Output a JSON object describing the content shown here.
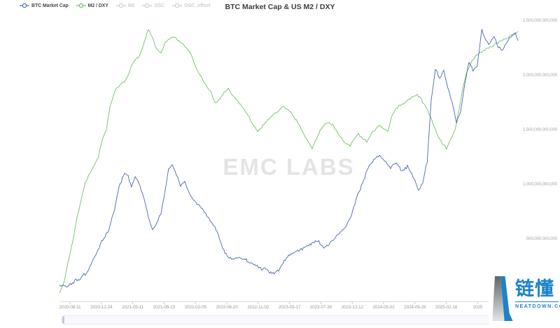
{
  "title": "BTC Market Cap & US M2 / DXY",
  "watermark": "EMC LABS",
  "legend": {
    "items": [
      {
        "label": "BTC Market Cap",
        "color": "#4a67b3",
        "active": true
      },
      {
        "label": "M2 / DXY",
        "color": "#72bf63",
        "active": true
      },
      {
        "label": "M2",
        "color": "#cccccc",
        "active": false
      },
      {
        "label": "OSC",
        "color": "#cccccc",
        "active": false
      },
      {
        "label": "OSC_offset",
        "color": "#cccccc",
        "active": false
      }
    ]
  },
  "y_axis_labels": [
    "2,500,000,000,000",
    "2,000,000,000,000",
    "1,500,000,000,000",
    "1,000,000,000,000",
    "500,000,000,000"
  ],
  "x_axis_labels": [
    "2020-08-11",
    "2020-12-24",
    "2021-05-11",
    "2021-09-23",
    "2022-02-05",
    "2022-06-20",
    "2022-11-02",
    "2023-03-17",
    "2023-07-30",
    "2023-12-12",
    "2024-05-02",
    "2024-09-28",
    "2025-02-16",
    "2025"
  ],
  "branding": {
    "name": "链懂",
    "domain": "NEATDOWN.COM",
    "color": "#1d82c7"
  },
  "chart_data": {
    "type": "line",
    "title": "BTC Market Cap & US M2 / DXY",
    "xlabel": "date",
    "ylabel": "USD",
    "ylim": [
      0,
      2500000000000
    ],
    "grid": false,
    "legend_position": "top-left",
    "y_gridline_values": [
      2500000000000,
      2000000000000,
      1500000000000,
      1000000000000,
      500000000000
    ],
    "x_ticks": [
      "2020-08-11",
      "2020-12-24",
      "2021-05-11",
      "2021-09-23",
      "2022-02-05",
      "2022-06-20",
      "2022-11-02",
      "2023-03-17",
      "2023-07-30",
      "2023-12-12",
      "2024-05-02",
      "2024-09-28",
      "2025-02-16",
      "2025"
    ],
    "x_unit_note": "points use t = fraction of time axis from 2020-08-11 (0) to mid-2025 (1); values in billions USD",
    "series": [
      {
        "name": "M2 / DXY",
        "color": "#72bf63",
        "jitter": 13,
        "points": [
          [
            0,
            10
          ],
          [
            0.011,
            128
          ],
          [
            0.02,
            320
          ],
          [
            0.029,
            480
          ],
          [
            0.038,
            705
          ],
          [
            0.047,
            865
          ],
          [
            0.056,
            1013
          ],
          [
            0.066,
            1103
          ],
          [
            0.075,
            1167
          ],
          [
            0.084,
            1250
          ],
          [
            0.093,
            1410
          ],
          [
            0.102,
            1506
          ],
          [
            0.111,
            1731
          ],
          [
            0.121,
            1859
          ],
          [
            0.13,
            1910
          ],
          [
            0.139,
            1936
          ],
          [
            0.148,
            1974
          ],
          [
            0.157,
            2090
          ],
          [
            0.166,
            2147
          ],
          [
            0.176,
            2192
          ],
          [
            0.185,
            2308
          ],
          [
            0.194,
            2423
          ],
          [
            0.203,
            2340
          ],
          [
            0.212,
            2244
          ],
          [
            0.221,
            2212
          ],
          [
            0.231,
            2295
          ],
          [
            0.24,
            2340
          ],
          [
            0.249,
            2359
          ],
          [
            0.258,
            2321
          ],
          [
            0.267,
            2295
          ],
          [
            0.276,
            2256
          ],
          [
            0.285,
            2212
          ],
          [
            0.295,
            2103
          ],
          [
            0.304,
            2019
          ],
          [
            0.313,
            1955
          ],
          [
            0.322,
            1891
          ],
          [
            0.331,
            1846
          ],
          [
            0.34,
            1744
          ],
          [
            0.35,
            1782
          ],
          [
            0.359,
            1846
          ],
          [
            0.368,
            1872
          ],
          [
            0.377,
            1827
          ],
          [
            0.386,
            1782
          ],
          [
            0.395,
            1731
          ],
          [
            0.405,
            1679
          ],
          [
            0.414,
            1615
          ],
          [
            0.423,
            1538
          ],
          [
            0.432,
            1487
          ],
          [
            0.441,
            1526
          ],
          [
            0.45,
            1571
          ],
          [
            0.46,
            1615
          ],
          [
            0.469,
            1654
          ],
          [
            0.478,
            1679
          ],
          [
            0.487,
            1718
          ],
          [
            0.496,
            1692
          ],
          [
            0.505,
            1654
          ],
          [
            0.514,
            1603
          ],
          [
            0.524,
            1538
          ],
          [
            0.533,
            1462
          ],
          [
            0.542,
            1397
          ],
          [
            0.551,
            1333
          ],
          [
            0.56,
            1410
          ],
          [
            0.569,
            1500
          ],
          [
            0.579,
            1551
          ],
          [
            0.588,
            1571
          ],
          [
            0.597,
            1538
          ],
          [
            0.606,
            1474
          ],
          [
            0.615,
            1423
          ],
          [
            0.624,
            1378
          ],
          [
            0.634,
            1359
          ],
          [
            0.643,
            1423
          ],
          [
            0.652,
            1462
          ],
          [
            0.661,
            1423
          ],
          [
            0.67,
            1397
          ],
          [
            0.679,
            1462
          ],
          [
            0.689,
            1506
          ],
          [
            0.698,
            1551
          ],
          [
            0.707,
            1506
          ],
          [
            0.716,
            1487
          ],
          [
            0.725,
            1635
          ],
          [
            0.734,
            1699
          ],
          [
            0.744,
            1731
          ],
          [
            0.753,
            1744
          ],
          [
            0.762,
            1782
          ],
          [
            0.771,
            1808
          ],
          [
            0.78,
            1827
          ],
          [
            0.789,
            1782
          ],
          [
            0.798,
            1718
          ],
          [
            0.808,
            1635
          ],
          [
            0.817,
            1538
          ],
          [
            0.826,
            1442
          ],
          [
            0.835,
            1378
          ],
          [
            0.844,
            1333
          ],
          [
            0.853,
            1410
          ],
          [
            0.863,
            1506
          ],
          [
            0.872,
            1699
          ],
          [
            0.881,
            1923
          ],
          [
            0.89,
            2051
          ],
          [
            0.899,
            2128
          ],
          [
            0.908,
            2179
          ],
          [
            0.918,
            2212
          ],
          [
            0.927,
            2231
          ],
          [
            0.936,
            2256
          ],
          [
            0.945,
            2276
          ],
          [
            0.954,
            2295
          ],
          [
            0.963,
            2321
          ],
          [
            0.973,
            2340
          ],
          [
            0.982,
            2359
          ],
          [
            0.991,
            2385
          ],
          [
            1,
            2404
          ]
        ]
      },
      {
        "name": "BTC Market Cap",
        "color": "#4a67b3",
        "jitter": 18,
        "points": [
          [
            0,
            80
          ],
          [
            0.015,
            64
          ],
          [
            0.031,
            108
          ],
          [
            0.046,
            140
          ],
          [
            0.061,
            205
          ],
          [
            0.076,
            333
          ],
          [
            0.092,
            480
          ],
          [
            0.107,
            577
          ],
          [
            0.118,
            737
          ],
          [
            0.13,
            974
          ],
          [
            0.142,
            1115
          ],
          [
            0.15,
            1077
          ],
          [
            0.157,
            974
          ],
          [
            0.165,
            1077
          ],
          [
            0.173,
            1013
          ],
          [
            0.183,
            897
          ],
          [
            0.194,
            705
          ],
          [
            0.203,
            577
          ],
          [
            0.212,
            654
          ],
          [
            0.221,
            737
          ],
          [
            0.231,
            961
          ],
          [
            0.238,
            1154
          ],
          [
            0.246,
            1179
          ],
          [
            0.255,
            1090
          ],
          [
            0.264,
            993
          ],
          [
            0.273,
            1038
          ],
          [
            0.282,
            929
          ],
          [
            0.295,
            846
          ],
          [
            0.307,
            795
          ],
          [
            0.319,
            731
          ],
          [
            0.331,
            654
          ],
          [
            0.344,
            577
          ],
          [
            0.356,
            417
          ],
          [
            0.368,
            333
          ],
          [
            0.38,
            308
          ],
          [
            0.392,
            333
          ],
          [
            0.405,
            308
          ],
          [
            0.417,
            282
          ],
          [
            0.429,
            256
          ],
          [
            0.441,
            231
          ],
          [
            0.453,
            218
          ],
          [
            0.466,
            179
          ],
          [
            0.478,
            218
          ],
          [
            0.49,
            308
          ],
          [
            0.502,
            353
          ],
          [
            0.514,
            385
          ],
          [
            0.527,
            410
          ],
          [
            0.539,
            436
          ],
          [
            0.551,
            462
          ],
          [
            0.563,
            487
          ],
          [
            0.576,
            423
          ],
          [
            0.588,
            449
          ],
          [
            0.6,
            500
          ],
          [
            0.612,
            564
          ],
          [
            0.624,
            615
          ],
          [
            0.637,
            718
          ],
          [
            0.649,
            897
          ],
          [
            0.661,
            1013
          ],
          [
            0.673,
            1154
          ],
          [
            0.685,
            1231
          ],
          [
            0.698,
            1269
          ],
          [
            0.71,
            1218
          ],
          [
            0.722,
            1154
          ],
          [
            0.734,
            1205
          ],
          [
            0.747,
            1122
          ],
          [
            0.759,
            1167
          ],
          [
            0.771,
            1077
          ],
          [
            0.783,
            948
          ],
          [
            0.792,
            1013
          ],
          [
            0.802,
            1218
          ],
          [
            0.811,
            1795
          ],
          [
            0.82,
            2051
          ],
          [
            0.829,
            1974
          ],
          [
            0.838,
            2051
          ],
          [
            0.847,
            1891
          ],
          [
            0.856,
            1763
          ],
          [
            0.866,
            1571
          ],
          [
            0.875,
            1667
          ],
          [
            0.884,
            1923
          ],
          [
            0.893,
            2115
          ],
          [
            0.902,
            2051
          ],
          [
            0.911,
            2083
          ],
          [
            0.921,
            2423
          ],
          [
            0.93,
            2308
          ],
          [
            0.939,
            2295
          ],
          [
            0.948,
            2359
          ],
          [
            0.957,
            2256
          ],
          [
            0.966,
            2231
          ],
          [
            0.976,
            2308
          ],
          [
            0.985,
            2359
          ],
          [
            0.994,
            2385
          ],
          [
            1,
            2321
          ]
        ]
      }
    ]
  }
}
